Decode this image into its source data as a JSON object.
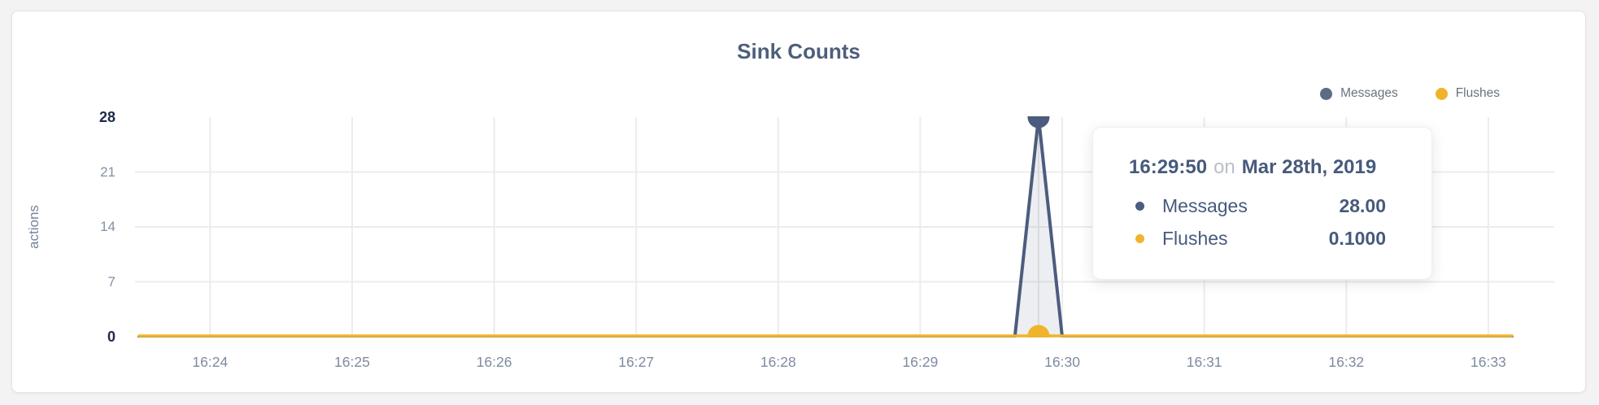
{
  "chart_data": {
    "type": "area",
    "title": "Sink Counts",
    "ylabel": "actions",
    "ylim": [
      0,
      28
    ],
    "y_ticks": [
      0,
      7,
      14,
      21,
      28
    ],
    "y_ticks_emphasized": [
      0,
      28
    ],
    "x_domain": [
      "16:23:30",
      "16:33:10"
    ],
    "x_ticks": [
      "16:24",
      "16:25",
      "16:26",
      "16:27",
      "16:28",
      "16:29",
      "16:30",
      "16:31",
      "16:32",
      "16:33"
    ],
    "grid": true,
    "legend_position": "top-right",
    "series": [
      {
        "name": "Messages",
        "color": "#4c5c7e",
        "area_fill": "rgba(76,92,126,0.10)",
        "stroke_width": 4,
        "points": [
          [
            "16:23:30",
            0
          ],
          [
            "16:29:40",
            0
          ],
          [
            "16:29:50",
            28
          ],
          [
            "16:30:00",
            0
          ],
          [
            "16:33:10",
            0
          ]
        ]
      },
      {
        "name": "Flushes",
        "color": "#f0b42c",
        "stroke_width": 3.5,
        "points": [
          [
            "16:23:30",
            0.1
          ],
          [
            "16:33:10",
            0.1
          ]
        ]
      }
    ],
    "hover_point": {
      "time": "16:29:50",
      "values": {
        "Messages": 28,
        "Flushes": 0.1
      }
    }
  },
  "legend": {
    "items": [
      {
        "label": "Messages",
        "color": "#5d6b87"
      },
      {
        "label": "Flushes",
        "color": "#f0b42c"
      }
    ]
  },
  "tooltip": {
    "time": "16:29:50",
    "conjunction": "on",
    "date": "Mar 28th, 2019",
    "rows": [
      {
        "label": "Messages",
        "value": "28.00",
        "color": "#4c5c7e"
      },
      {
        "label": "Flushes",
        "value": "0.1000",
        "color": "#f0b42c"
      }
    ]
  },
  "colors": {
    "grid": "#ececee",
    "baseline": "#e8e9ec",
    "hover_line": "#d8dade",
    "tick_label": "#8591a5",
    "tick_label_emphasized": "#1d2a47",
    "title": "#4e5f7a"
  }
}
